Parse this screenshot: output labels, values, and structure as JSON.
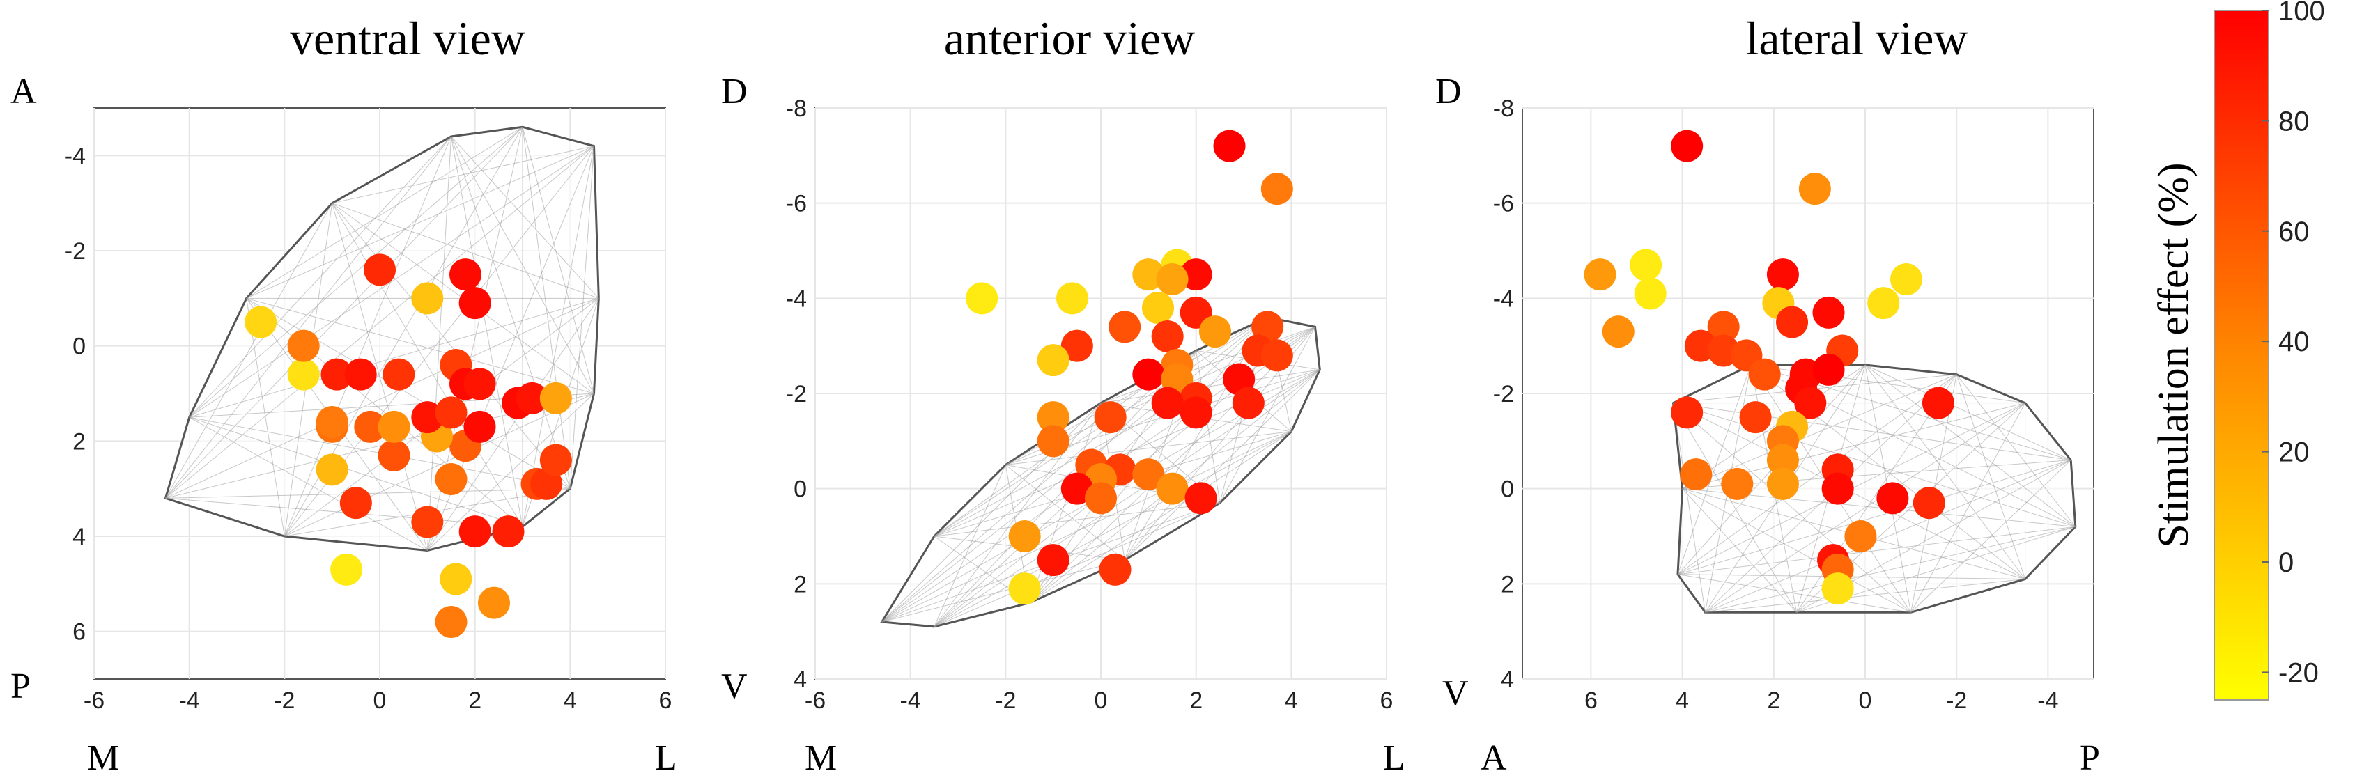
{
  "chart_data": [
    {
      "type": "scatter",
      "title": "ventral view",
      "corner_labels": {
        "top_left": "A",
        "bottom_left": "P",
        "x_left": "M",
        "x_right": "L"
      },
      "xlim": [
        -6,
        6
      ],
      "ylim": [
        -5,
        7
      ],
      "xticks": [
        "-6",
        "-4",
        "-2",
        "0",
        "2",
        "4",
        "6"
      ],
      "yticks": [
        "6",
        "4",
        "2",
        "0",
        "-2",
        "-4"
      ],
      "grid": true,
      "points": [
        {
          "x": 1.5,
          "y": 5.8,
          "v": 40
        },
        {
          "x": 2.4,
          "y": 5.4,
          "v": 30
        },
        {
          "x": 1.6,
          "y": 4.9,
          "v": 0
        },
        {
          "x": -0.7,
          "y": 4.7,
          "v": -15
        },
        {
          "x": 2.0,
          "y": 3.9,
          "v": 90
        },
        {
          "x": 2.7,
          "y": 3.9,
          "v": 85
        },
        {
          "x": 1.0,
          "y": 3.7,
          "v": 70
        },
        {
          "x": -0.5,
          "y": 3.3,
          "v": 75
        },
        {
          "x": 3.3,
          "y": 2.9,
          "v": 65
        },
        {
          "x": 3.5,
          "y": 2.9,
          "v": 75
        },
        {
          "x": 1.5,
          "y": 2.8,
          "v": 45
        },
        {
          "x": -1.0,
          "y": 2.6,
          "v": 10
        },
        {
          "x": 0.3,
          "y": 2.3,
          "v": 60
        },
        {
          "x": 3.7,
          "y": 2.4,
          "v": 70
        },
        {
          "x": 1.8,
          "y": 2.1,
          "v": 55
        },
        {
          "x": 1.2,
          "y": 1.9,
          "v": 20
        },
        {
          "x": -1.0,
          "y": 1.7,
          "v": 45
        },
        {
          "x": -0.2,
          "y": 1.7,
          "v": 55
        },
        {
          "x": 0.3,
          "y": 1.7,
          "v": 30
        },
        {
          "x": 1.0,
          "y": 1.5,
          "v": 90
        },
        {
          "x": 1.5,
          "y": 1.4,
          "v": 75
        },
        {
          "x": 2.1,
          "y": 1.7,
          "v": 95
        },
        {
          "x": -1.0,
          "y": 1.6,
          "v": 40
        },
        {
          "x": 2.9,
          "y": 1.2,
          "v": 95
        },
        {
          "x": 3.2,
          "y": 1.1,
          "v": 90
        },
        {
          "x": 3.7,
          "y": 1.1,
          "v": 20
        },
        {
          "x": -0.9,
          "y": 0.6,
          "v": 85
        },
        {
          "x": -0.4,
          "y": 0.6,
          "v": 90
        },
        {
          "x": 0.4,
          "y": 0.6,
          "v": 75
        },
        {
          "x": 1.6,
          "y": 0.4,
          "v": 70
        },
        {
          "x": 1.8,
          "y": 0.8,
          "v": 95
        },
        {
          "x": 2.1,
          "y": 0.8,
          "v": 90
        },
        {
          "x": -1.6,
          "y": 0.6,
          "v": -10
        },
        {
          "x": -1.6,
          "y": 0.0,
          "v": 40
        },
        {
          "x": -2.5,
          "y": -0.5,
          "v": -5
        },
        {
          "x": 1.0,
          "y": -1.0,
          "v": 5
        },
        {
          "x": 2.0,
          "y": -0.9,
          "v": 95
        },
        {
          "x": 1.8,
          "y": -1.5,
          "v": 95
        },
        {
          "x": 0.0,
          "y": -1.6,
          "v": 80
        }
      ]
    },
    {
      "type": "scatter",
      "title": "anterior view",
      "corner_labels": {
        "top_left": "D",
        "bottom_left": "V",
        "x_left": "M",
        "x_right": "L"
      },
      "xlim": [
        -6,
        6
      ],
      "ylim": [
        -8,
        4
      ],
      "xticks": [
        "-6",
        "-4",
        "-2",
        "0",
        "2",
        "4",
        "6"
      ],
      "yticks": [
        "-8",
        "-6",
        "-4",
        "-2",
        "0",
        "2",
        "4"
      ],
      "grid": true,
      "points": [
        {
          "x": 2.7,
          "y": -7.2,
          "v": 100
        },
        {
          "x": 3.7,
          "y": -6.3,
          "v": 40
        },
        {
          "x": 1.6,
          "y": -4.7,
          "v": -10
        },
        {
          "x": 2.0,
          "y": -4.5,
          "v": 95
        },
        {
          "x": 1.0,
          "y": -4.5,
          "v": 10
        },
        {
          "x": 1.5,
          "y": -4.4,
          "v": 20
        },
        {
          "x": -2.5,
          "y": -4.0,
          "v": -15
        },
        {
          "x": -0.6,
          "y": -4.0,
          "v": -10
        },
        {
          "x": 1.2,
          "y": -3.8,
          "v": 0
        },
        {
          "x": 2.0,
          "y": -3.7,
          "v": 85
        },
        {
          "x": 0.5,
          "y": -3.4,
          "v": 60
        },
        {
          "x": 1.4,
          "y": -3.2,
          "v": 75
        },
        {
          "x": 3.5,
          "y": -3.4,
          "v": 65
        },
        {
          "x": 2.4,
          "y": -3.3,
          "v": 25
        },
        {
          "x": -0.5,
          "y": -3.0,
          "v": 75
        },
        {
          "x": 3.3,
          "y": -2.9,
          "v": 75
        },
        {
          "x": 3.7,
          "y": -2.8,
          "v": 70
        },
        {
          "x": -1.0,
          "y": -2.7,
          "v": 0
        },
        {
          "x": 1.6,
          "y": -2.6,
          "v": 40
        },
        {
          "x": 1.0,
          "y": -2.4,
          "v": 100
        },
        {
          "x": 1.6,
          "y": -2.3,
          "v": 35
        },
        {
          "x": 2.9,
          "y": -2.3,
          "v": 95
        },
        {
          "x": 2.0,
          "y": -1.9,
          "v": 80
        },
        {
          "x": 3.1,
          "y": -1.8,
          "v": 85
        },
        {
          "x": 1.4,
          "y": -1.8,
          "v": 90
        },
        {
          "x": 2.0,
          "y": -1.6,
          "v": 90
        },
        {
          "x": -1.0,
          "y": -1.5,
          "v": 30
        },
        {
          "x": 0.2,
          "y": -1.5,
          "v": 65
        },
        {
          "x": -1.0,
          "y": -1.0,
          "v": 45
        },
        {
          "x": -0.2,
          "y": -0.5,
          "v": 60
        },
        {
          "x": 0.4,
          "y": -0.4,
          "v": 70
        },
        {
          "x": 1.0,
          "y": -0.3,
          "v": 45
        },
        {
          "x": 0.0,
          "y": -0.2,
          "v": 35
        },
        {
          "x": -0.5,
          "y": 0.0,
          "v": 95
        },
        {
          "x": 1.5,
          "y": 0.0,
          "v": 30
        },
        {
          "x": 2.1,
          "y": 0.2,
          "v": 90
        },
        {
          "x": 0.0,
          "y": 0.2,
          "v": 50
        },
        {
          "x": -1.6,
          "y": 1.0,
          "v": 25
        },
        {
          "x": -1.0,
          "y": 1.5,
          "v": 90
        },
        {
          "x": 0.3,
          "y": 1.7,
          "v": 75
        },
        {
          "x": -1.6,
          "y": 2.1,
          "v": -10
        }
      ]
    },
    {
      "type": "scatter",
      "title": "lateral view",
      "corner_labels": {
        "top_left": "D",
        "bottom_left": "V",
        "x_left": "A",
        "x_right": "P"
      },
      "xlim": [
        7.5,
        -5
      ],
      "ylim": [
        -8,
        4
      ],
      "xticks": [
        "6",
        "4",
        "2",
        "0",
        "-2",
        "-4"
      ],
      "yticks": [
        "-8",
        "-6",
        "-4",
        "-2",
        "0",
        "2",
        "4"
      ],
      "grid": true,
      "points": [
        {
          "x": 3.9,
          "y": -7.2,
          "v": 100
        },
        {
          "x": 1.1,
          "y": -6.3,
          "v": 30
        },
        {
          "x": 5.8,
          "y": -4.5,
          "v": 25
        },
        {
          "x": 4.8,
          "y": -4.7,
          "v": -15
        },
        {
          "x": 1.8,
          "y": -4.5,
          "v": 95
        },
        {
          "x": -0.9,
          "y": -4.4,
          "v": -10
        },
        {
          "x": 4.7,
          "y": -4.1,
          "v": -15
        },
        {
          "x": 1.9,
          "y": -3.9,
          "v": 0
        },
        {
          "x": -0.4,
          "y": -3.9,
          "v": -10
        },
        {
          "x": 0.8,
          "y": -3.7,
          "v": 95
        },
        {
          "x": 1.6,
          "y": -3.5,
          "v": 80
        },
        {
          "x": 5.4,
          "y": -3.3,
          "v": 30
        },
        {
          "x": 3.1,
          "y": -3.4,
          "v": 60
        },
        {
          "x": 3.6,
          "y": -3.0,
          "v": 75
        },
        {
          "x": 3.1,
          "y": -2.9,
          "v": 70
        },
        {
          "x": 2.6,
          "y": -2.8,
          "v": 65
        },
        {
          "x": 0.5,
          "y": -2.9,
          "v": 70
        },
        {
          "x": 2.2,
          "y": -2.4,
          "v": 60
        },
        {
          "x": 1.3,
          "y": -2.4,
          "v": 95
        },
        {
          "x": 0.8,
          "y": -2.5,
          "v": 100
        },
        {
          "x": 1.4,
          "y": -2.1,
          "v": 95
        },
        {
          "x": 1.2,
          "y": -1.8,
          "v": 90
        },
        {
          "x": -1.6,
          "y": -1.8,
          "v": 90
        },
        {
          "x": 3.9,
          "y": -1.6,
          "v": 80
        },
        {
          "x": 2.4,
          "y": -1.5,
          "v": 70
        },
        {
          "x": 1.6,
          "y": -1.3,
          "v": 10
        },
        {
          "x": 1.8,
          "y": -1.0,
          "v": 40
        },
        {
          "x": 1.8,
          "y": -0.6,
          "v": 30
        },
        {
          "x": 3.7,
          "y": -0.3,
          "v": 45
        },
        {
          "x": 2.8,
          "y": -0.1,
          "v": 40
        },
        {
          "x": 1.8,
          "y": -0.1,
          "v": 25
        },
        {
          "x": 0.6,
          "y": -0.4,
          "v": 85
        },
        {
          "x": 0.6,
          "y": 0.0,
          "v": 95
        },
        {
          "x": -0.6,
          "y": 0.2,
          "v": 95
        },
        {
          "x": -1.4,
          "y": 0.3,
          "v": 80
        },
        {
          "x": 0.1,
          "y": 1.0,
          "v": 40
        },
        {
          "x": 0.7,
          "y": 1.5,
          "v": 90
        },
        {
          "x": 0.6,
          "y": 1.7,
          "v": 50
        },
        {
          "x": 0.6,
          "y": 2.1,
          "v": -10
        }
      ]
    }
  ],
  "colorbar": {
    "label": "Stimulation effect (%)",
    "min": -25,
    "max": 100,
    "ticks": [
      "100",
      "80",
      "60",
      "40",
      "20",
      "0",
      "-20"
    ],
    "colors": [
      "#ffff00",
      "#ff8800",
      "#ff0000"
    ]
  }
}
